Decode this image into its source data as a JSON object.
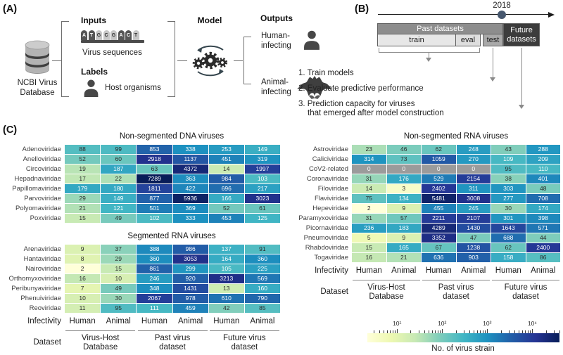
{
  "figure": {
    "panel_a_label": "(A)",
    "panel_b_label": "(B)",
    "panel_c_label": "(C)"
  },
  "panelA": {
    "database_label": [
      "NCBI Virus",
      "Database"
    ],
    "inputs_heading": "Inputs",
    "sequence_letters": [
      "A",
      "T",
      "G",
      "C",
      "G",
      "A",
      "C",
      "T"
    ],
    "inputs_caption": "Virus sequences",
    "labels_heading": "Labels",
    "labels_caption": "Host organisms",
    "model_heading": "Model",
    "outputs_heading": "Outputs",
    "output_human": [
      "Human-",
      "infecting"
    ],
    "output_animal": [
      "Animal-",
      "infecting"
    ]
  },
  "panelB": {
    "year_marker": "2018",
    "past_label": "Past datasets",
    "train_label": "train",
    "eval_label": "eval",
    "test_label": "test",
    "future_label": [
      "Future",
      "datasets"
    ],
    "steps": [
      "1. Train models",
      "2. Evaluate predictive performance",
      "3. Prediction capacity for viruses",
      "that emerged after model construction"
    ]
  },
  "panelC": {
    "infectivity_label": "Infectivity",
    "dataset_label": "Dataset",
    "infectivity_columns": [
      "Human",
      "Animal",
      "Human",
      "Animal",
      "Human",
      "Animal"
    ],
    "dataset_groups": [
      [
        "Virus-Host",
        "Database"
      ],
      [
        "Past virus",
        "dataset"
      ],
      [
        "Future virus",
        "dataset"
      ]
    ],
    "zero_color": "#9b9b9b",
    "colorbar": {
      "ticks": [
        "10¹",
        "10²",
        "10³",
        "10⁴"
      ],
      "label": "No. of virus strain"
    }
  },
  "chart_data": [
    {
      "type": "heatmap",
      "title": "Non-segmented DNA viruses",
      "column_infectivity": [
        "Human",
        "Animal",
        "Human",
        "Animal",
        "Human",
        "Animal"
      ],
      "column_datasets": [
        "Virus-Host Database",
        "Past virus dataset",
        "Future virus dataset"
      ],
      "scale": {
        "type": "log",
        "colormap": "YlGnBu",
        "label": "No. of virus strain",
        "ticks": [
          10,
          100,
          1000,
          10000
        ]
      },
      "families": [
        "Adenoviridae",
        "Anelloviridae",
        "Circoviridae",
        "Hepadnaviridae",
        "Papillomaviridae",
        "Parvoviridae",
        "Polyomaviridae",
        "Poxviridae"
      ],
      "values": [
        [
          88,
          99,
          853,
          338,
          253,
          149
        ],
        [
          52,
          60,
          2918,
          1137,
          451,
          319
        ],
        [
          19,
          187,
          63,
          4372,
          14,
          1997
        ],
        [
          17,
          22,
          7289,
          363,
          984,
          103
        ],
        [
          179,
          180,
          1811,
          422,
          696,
          217
        ],
        [
          29,
          149,
          877,
          5936,
          166,
          3023
        ],
        [
          21,
          121,
          501,
          369,
          52,
          61
        ],
        [
          15,
          49,
          102,
          333,
          453,
          125
        ]
      ]
    },
    {
      "type": "heatmap",
      "title": "Segmented RNA viruses",
      "column_infectivity": [
        "Human",
        "Animal",
        "Human",
        "Animal",
        "Human",
        "Animal"
      ],
      "column_datasets": [
        "Virus-Host Database",
        "Past virus dataset",
        "Future virus dataset"
      ],
      "scale": {
        "type": "log",
        "colormap": "YlGnBu",
        "label": "No. of virus strain",
        "ticks": [
          10,
          100,
          1000,
          10000
        ]
      },
      "families": [
        "Arenaviridae",
        "Hantaviridae",
        "Nairoviridae",
        "Orthomyxoviridae",
        "Peribunyaviridae",
        "Phenuiviridae",
        "Reoviridae"
      ],
      "values": [
        [
          9,
          37,
          388,
          986,
          137,
          91
        ],
        [
          8,
          29,
          360,
          3053,
          164,
          360
        ],
        [
          2,
          15,
          861,
          299,
          105,
          225
        ],
        [
          16,
          10,
          246,
          920,
          3213,
          569
        ],
        [
          7,
          49,
          348,
          1431,
          13,
          160
        ],
        [
          10,
          30,
          2067,
          978,
          610,
          790
        ],
        [
          11,
          95,
          111,
          459,
          42,
          85
        ]
      ]
    },
    {
      "type": "heatmap",
      "title": "Non-segmented RNA viruses",
      "column_infectivity": [
        "Human",
        "Animal",
        "Human",
        "Animal",
        "Human",
        "Animal"
      ],
      "column_datasets": [
        "Virus-Host Database",
        "Past virus dataset",
        "Future virus dataset"
      ],
      "scale": {
        "type": "log",
        "colormap": "YlGnBu",
        "label": "No. of virus strain",
        "ticks": [
          10,
          100,
          1000,
          10000
        ]
      },
      "gray_zero_note": "CoV2-related cells with value 0 are masked gray",
      "families": [
        "Astroviridae",
        "Caliciviridae",
        "CoV2-related",
        "Coronaviridae",
        "Filoviridae",
        "Flaviviridae",
        "Hepeviridae",
        "Paramyxoviridae",
        "Picornaviridae",
        "Pneumoviridae",
        "Rhabdoviridae",
        "Togaviridae"
      ],
      "values": [
        [
          23,
          46,
          62,
          248,
          43,
          288
        ],
        [
          314,
          73,
          1059,
          270,
          109,
          209
        ],
        [
          0,
          0,
          0,
          0,
          95,
          110
        ],
        [
          31,
          176,
          529,
          2154,
          38,
          401
        ],
        [
          14,
          3,
          2402,
          311,
          303,
          48
        ],
        [
          75,
          134,
          5481,
          3008,
          277,
          708
        ],
        [
          2,
          9,
          455,
          245,
          30,
          174
        ],
        [
          31,
          57,
          2211,
          2107,
          301,
          398
        ],
        [
          236,
          183,
          4289,
          1430,
          1643,
          571
        ],
        [
          5,
          9,
          3352,
          47,
          688,
          44
        ],
        [
          15,
          165,
          67,
          1238,
          62,
          2400
        ],
        [
          16,
          21,
          636,
          903,
          158,
          86
        ]
      ]
    }
  ]
}
